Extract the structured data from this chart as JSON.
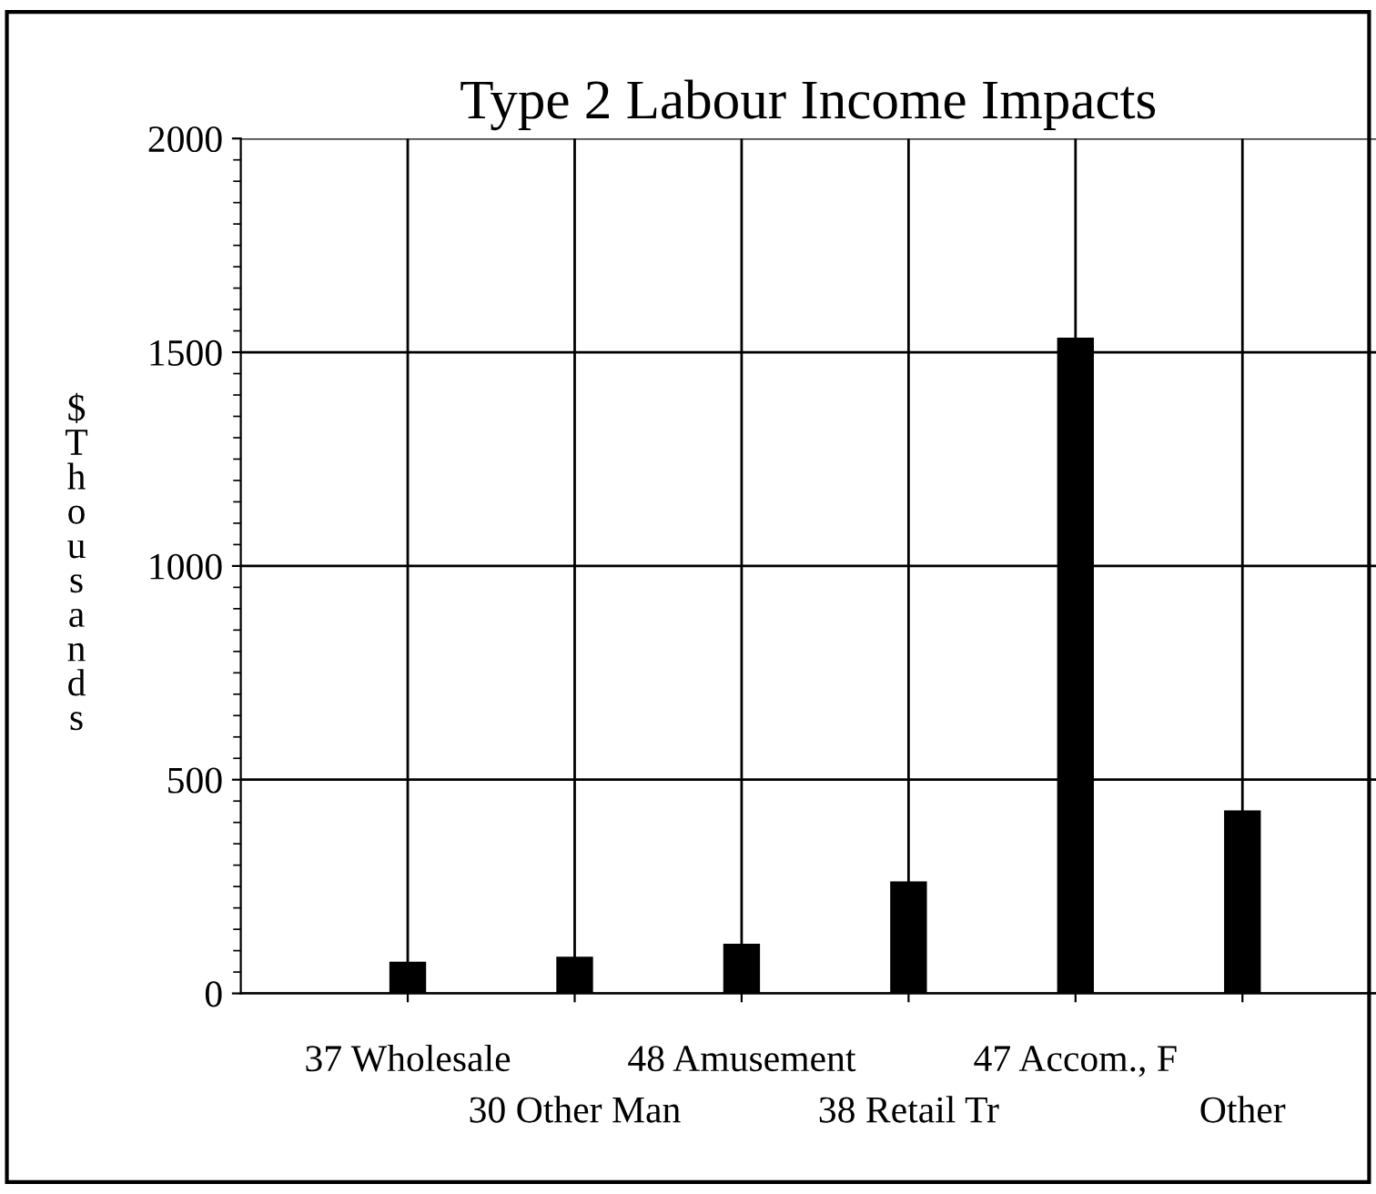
{
  "chart_data": {
    "type": "bar",
    "title": "Type 2 Labour Income Impacts",
    "ylabel": "$\nT\nh\no\nu\ns\na\nn\nd\ns",
    "categories": [
      "37 Wholesale",
      "30 Other Man",
      "48 Amusement",
      "38 Retail Tr",
      "47 Accom., F",
      "Other"
    ],
    "values": [
      74,
      86,
      116,
      262,
      1534,
      428
    ],
    "color": "#000000",
    "ylim": [
      0,
      2000
    ],
    "yticks": [
      0,
      500,
      1000,
      1500,
      2000
    ],
    "grid": true,
    "legend": false
  }
}
